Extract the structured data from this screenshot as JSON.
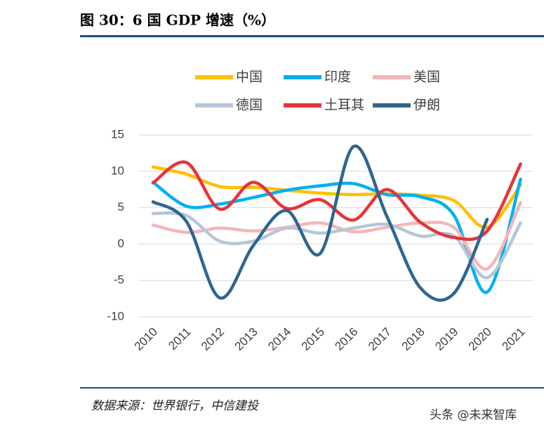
{
  "header": {
    "title": "图 30：6 国 GDP 增速（%）"
  },
  "chart_data": {
    "type": "line",
    "categories": [
      "2010",
      "2011",
      "2012",
      "2013",
      "2014",
      "2015",
      "2016",
      "2017",
      "2018",
      "2019",
      "2020",
      "2021"
    ],
    "series": [
      {
        "name": "中国",
        "color": "#FFC000",
        "values": [
          10.6,
          9.6,
          7.9,
          7.8,
          7.4,
          7.0,
          6.8,
          6.9,
          6.7,
          6.0,
          2.3,
          8.1
        ]
      },
      {
        "name": "印度",
        "color": "#00B0F0",
        "values": [
          8.5,
          5.2,
          5.5,
          6.4,
          7.4,
          8.0,
          8.3,
          6.8,
          6.5,
          4.0,
          -6.6,
          8.9
        ]
      },
      {
        "name": "美国",
        "color": "#F4B6B8",
        "values": [
          2.6,
          1.6,
          2.2,
          1.8,
          2.3,
          2.9,
          1.7,
          2.3,
          2.9,
          2.3,
          -3.4,
          5.7
        ]
      },
      {
        "name": "德国",
        "color": "#B4C7D9",
        "values": [
          4.2,
          3.9,
          0.4,
          0.4,
          2.2,
          1.5,
          2.2,
          2.7,
          1.1,
          1.1,
          -4.6,
          2.9
        ]
      },
      {
        "name": "土耳其",
        "color": "#E8333A",
        "values": [
          8.4,
          11.2,
          4.8,
          8.5,
          4.9,
          6.1,
          3.3,
          7.5,
          3.0,
          0.9,
          1.8,
          11.0
        ]
      },
      {
        "name": "伊朗",
        "color": "#2E6690",
        "values": [
          5.8,
          3.1,
          -7.4,
          -0.2,
          4.6,
          -1.3,
          13.4,
          3.8,
          -6.0,
          -6.8,
          3.4,
          null
        ]
      }
    ],
    "ylim": [
      -10,
      15
    ],
    "yticks": [
      -10,
      -5,
      0,
      5,
      10,
      15
    ],
    "grid": true
  },
  "footer": {
    "source": "数据来源：世界银行，中信建投",
    "watermark": "头条 @未来智库"
  }
}
